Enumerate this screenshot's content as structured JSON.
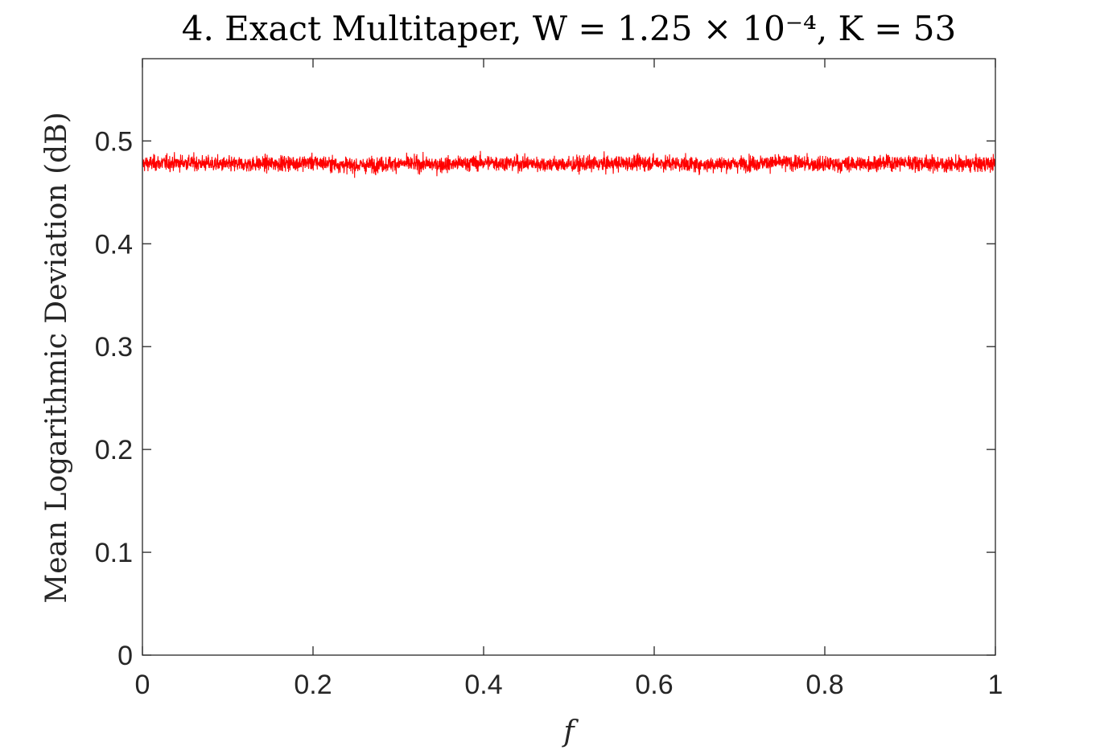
{
  "chart_data": {
    "type": "line",
    "title": "4. Exact Multitaper, W = 1.25 × 10⁻⁴, K = 53",
    "xlabel": "f",
    "ylabel": "Mean Logarithmic Deviation (dB)",
    "xlim": [
      0,
      1
    ],
    "ylim": [
      0,
      0.58
    ],
    "xticks": [
      0,
      0.2,
      0.4,
      0.6,
      0.8,
      1
    ],
    "xtick_labels": [
      "0",
      "0.2",
      "0.4",
      "0.6",
      "0.8",
      "1"
    ],
    "yticks": [
      0,
      0.1,
      0.2,
      0.3,
      0.4,
      0.5
    ],
    "ytick_labels": [
      "0",
      "0.1",
      "0.2",
      "0.3",
      "0.4",
      "0.5"
    ],
    "grid": false,
    "series": [
      {
        "color": "#ff0000",
        "x": [
          0,
          0.05,
          0.1,
          0.15,
          0.2,
          0.25,
          0.3,
          0.35,
          0.4,
          0.45,
          0.5,
          0.55,
          0.6,
          0.65,
          0.7,
          0.75,
          0.8,
          0.85,
          0.9,
          0.95,
          1
        ],
        "y": [
          0.478,
          0.479,
          0.477,
          0.478,
          0.479,
          0.476,
          0.478,
          0.477,
          0.479,
          0.478,
          0.477,
          0.478,
          0.479,
          0.477,
          0.478,
          0.479,
          0.477,
          0.478,
          0.479,
          0.477,
          0.478
        ],
        "noise_band": [
          0.43,
          0.525
        ]
      }
    ]
  }
}
